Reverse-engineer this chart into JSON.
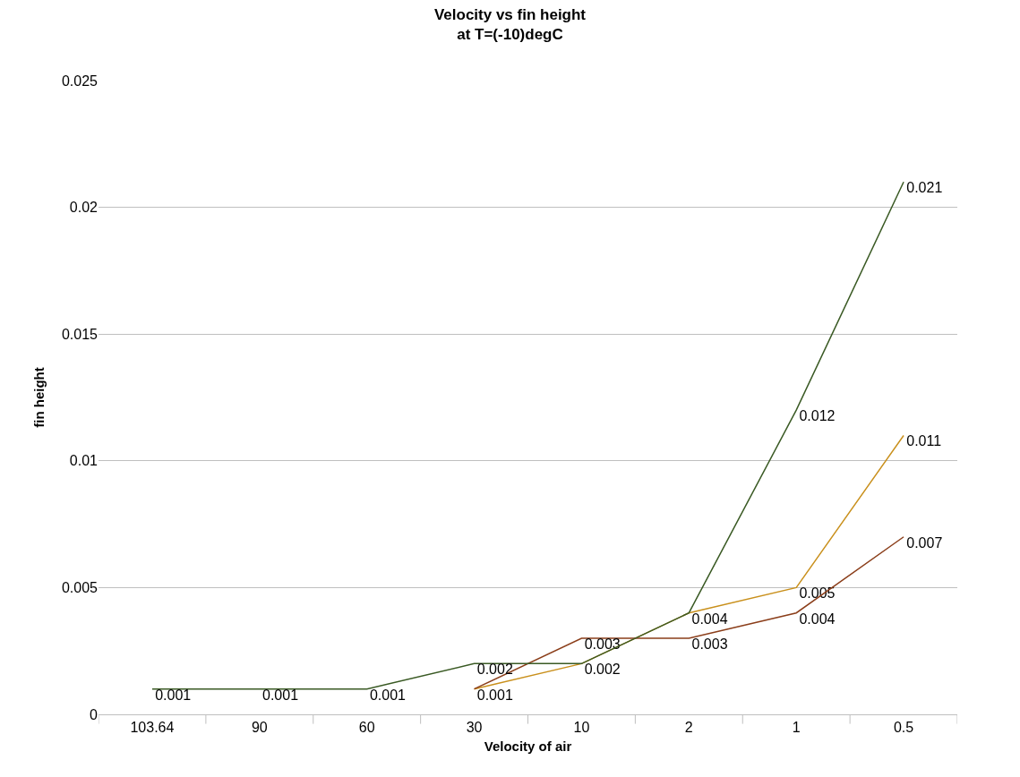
{
  "chart_data": {
    "type": "line",
    "title": "Velocity vs fin height\nat T=(-10)degC",
    "xlabel": "Velocity of air",
    "ylabel": "fin height",
    "categories": [
      "103.64",
      "90",
      "60",
      "30",
      "10",
      "2",
      "1",
      "0.5"
    ],
    "series": [
      {
        "color": "#c9901c",
        "values": [
          null,
          null,
          null,
          0.001,
          0.002,
          0.004,
          0.005,
          0.011
        ],
        "value_labels": [
          null,
          null,
          null,
          null,
          "0.002",
          "0.004",
          "0.005",
          "0.011"
        ]
      },
      {
        "color": "#8b3e1a",
        "values": [
          null,
          null,
          null,
          0.001,
          0.003,
          0.003,
          0.004,
          0.007
        ],
        "value_labels": [
          null,
          null,
          null,
          "0.001",
          "0.003",
          "0.003",
          "0.004",
          "0.007"
        ]
      },
      {
        "color": "#3a5a24",
        "values": [
          0.001,
          0.001,
          0.001,
          0.002,
          0.002,
          0.004,
          0.012,
          0.021
        ],
        "value_labels": [
          "0.001",
          "0.001",
          "0.001",
          "0.002",
          null,
          null,
          "0.012",
          "0.021"
        ]
      }
    ],
    "ylim": [
      0,
      0.025
    ],
    "yticks": [
      0,
      0.005,
      0.01,
      0.015,
      0.02,
      0.025
    ],
    "grid": "y",
    "marker": "none"
  }
}
